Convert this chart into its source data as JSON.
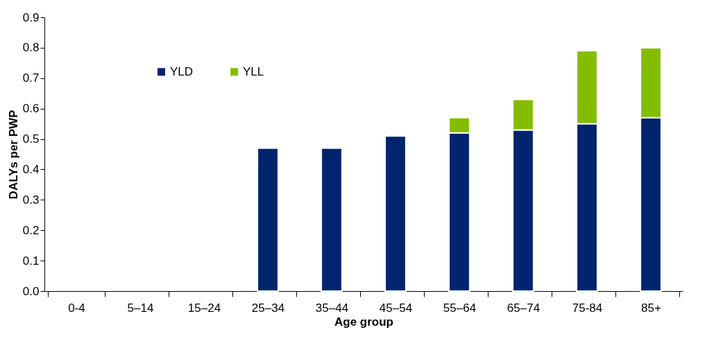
{
  "chart_data": {
    "type": "bar",
    "stacked": true,
    "xlabel": "Age group",
    "ylabel": "DALYs per PWP",
    "categories": [
      "0-4",
      "5–14",
      "15–24",
      "25–34",
      "35–44",
      "45–54",
      "55–64",
      "65–74",
      "75-84",
      "85+"
    ],
    "series": [
      {
        "name": "YLD",
        "color": "#00256e",
        "values": [
          null,
          null,
          null,
          0.47,
          0.47,
          0.51,
          0.52,
          0.53,
          0.55,
          0.57
        ]
      },
      {
        "name": "YLL",
        "color": "#84bd00",
        "values": [
          null,
          null,
          null,
          null,
          null,
          null,
          0.05,
          0.1,
          0.24,
          0.23
        ]
      }
    ],
    "ylim": [
      0,
      0.9
    ],
    "yticks": [
      {
        "value": 0,
        "label": "0.0"
      },
      0.1,
      0.2,
      0.3,
      0.4,
      0.5,
      0.6,
      0.7,
      0.8,
      0.9
    ],
    "legend": "top left"
  }
}
